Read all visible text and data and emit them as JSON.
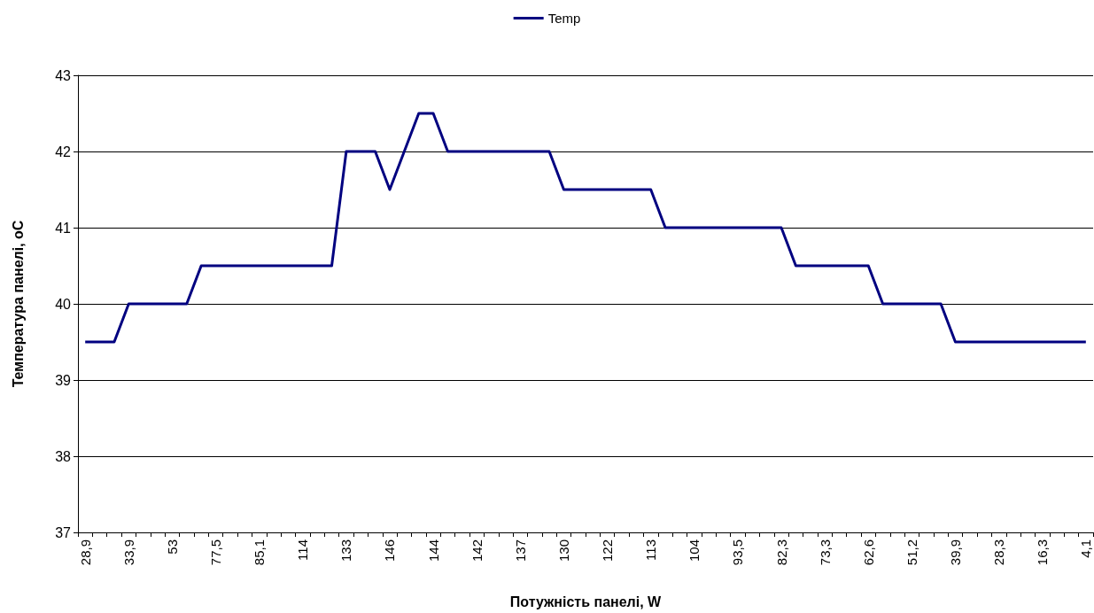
{
  "chart_data": {
    "type": "line",
    "xlabel": "Потужність панелі, W",
    "ylabel": "Температура панелі, oC",
    "categories": [
      "28,9",
      null,
      null,
      "33,9",
      null,
      null,
      "53",
      null,
      null,
      "77,5",
      null,
      null,
      "85,1",
      null,
      null,
      "114",
      null,
      null,
      "133",
      null,
      null,
      "146",
      null,
      null,
      "144",
      null,
      null,
      "142",
      null,
      null,
      "137",
      null,
      null,
      "130",
      null,
      null,
      "122",
      null,
      null,
      "113",
      null,
      null,
      "104",
      null,
      null,
      "93,5",
      null,
      null,
      "82,3",
      null,
      null,
      "73,3",
      null,
      null,
      "62,6",
      null,
      null,
      "51,2",
      null,
      null,
      "39,9",
      null,
      null,
      "28,3",
      null,
      null,
      "16,3",
      null,
      null,
      "4,1"
    ],
    "series": [
      {
        "name": "Temp",
        "color": "#000080",
        "values": [
          39.5,
          39.5,
          39.5,
          40,
          40,
          40,
          40,
          40,
          40.5,
          40.5,
          40.5,
          40.5,
          40.5,
          40.5,
          40.5,
          40.5,
          40.5,
          40.5,
          42,
          42,
          42,
          41.5,
          42,
          42.5,
          42.5,
          42,
          42,
          42,
          42,
          42,
          42,
          42,
          42,
          41.5,
          41.5,
          41.5,
          41.5,
          41.5,
          41.5,
          41.5,
          41,
          41,
          41,
          41,
          41,
          41,
          41,
          41,
          41,
          40.5,
          40.5,
          40.5,
          40.5,
          40.5,
          40.5,
          40,
          40,
          40,
          40,
          40,
          39.5,
          39.5,
          39.5,
          39.5,
          39.5,
          39.5,
          39.5,
          39.5,
          39.5,
          39.5
        ]
      }
    ],
    "ylim": [
      37,
      43
    ],
    "yticks": [
      37,
      38,
      39,
      40,
      41,
      42,
      43
    ],
    "grid": "y",
    "legend": "top",
    "marker": "none",
    "line_style": "solid"
  }
}
